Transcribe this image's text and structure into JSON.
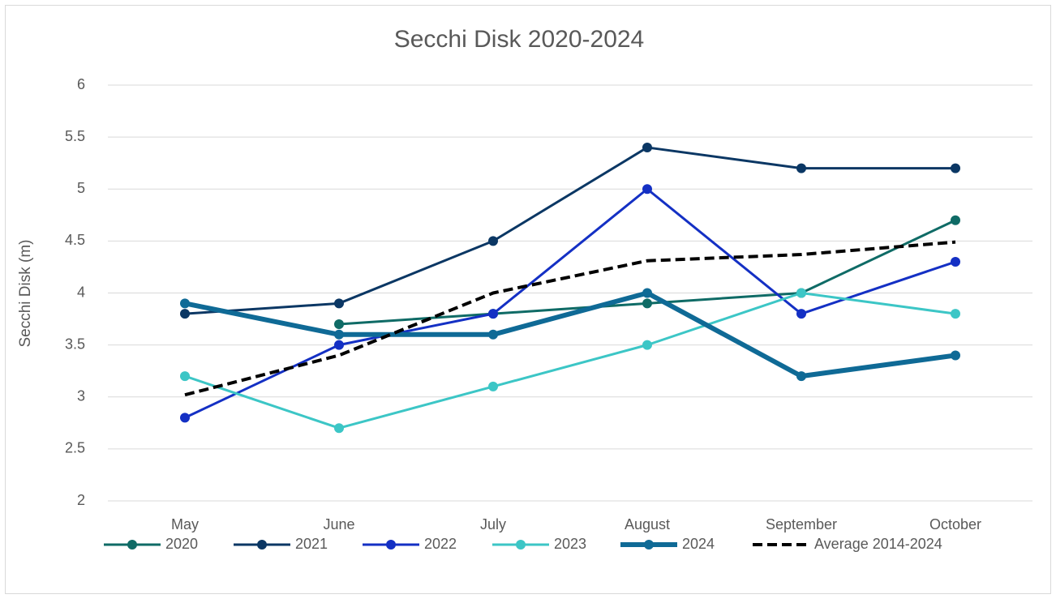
{
  "chart_data": {
    "type": "line",
    "title": "Secchi Disk 2020-2024",
    "y_label": "Secchi Disk (m)",
    "categories": [
      "May",
      "June",
      "July",
      "August",
      "September",
      "October"
    ],
    "ylim": [
      2,
      6
    ],
    "yticks": [
      2,
      2.5,
      3,
      3.5,
      4,
      4.5,
      5,
      5.5,
      6
    ],
    "grid": true,
    "legend": "bottom",
    "series": [
      {
        "name": "2020",
        "color": "#0f6b66",
        "line_width": 3,
        "marker": true,
        "dashed": false,
        "values": [
          null,
          3.7,
          3.8,
          3.9,
          4.0,
          4.7
        ]
      },
      {
        "name": "2021",
        "color": "#0b3764",
        "line_width": 3,
        "marker": true,
        "dashed": false,
        "values": [
          3.8,
          3.9,
          4.5,
          5.4,
          5.2,
          5.2
        ]
      },
      {
        "name": "2022",
        "color": "#1430c4",
        "line_width": 3,
        "marker": true,
        "dashed": false,
        "values": [
          2.8,
          3.5,
          3.8,
          5.0,
          3.8,
          4.3
        ]
      },
      {
        "name": "2023",
        "color": "#3cc6c6",
        "line_width": 3,
        "marker": true,
        "dashed": false,
        "values": [
          3.2,
          2.7,
          3.1,
          3.5,
          4.0,
          3.8
        ]
      },
      {
        "name": "2024",
        "color": "#0f6a96",
        "line_width": 6,
        "marker": true,
        "dashed": false,
        "values": [
          3.9,
          3.6,
          3.6,
          4.0,
          3.2,
          3.4
        ]
      },
      {
        "name": "Average 2014-2024",
        "color": "#000000",
        "line_width": 4,
        "marker": false,
        "dashed": true,
        "values": [
          3.02,
          3.4,
          4.0,
          4.31,
          4.37,
          4.49
        ]
      }
    ]
  }
}
